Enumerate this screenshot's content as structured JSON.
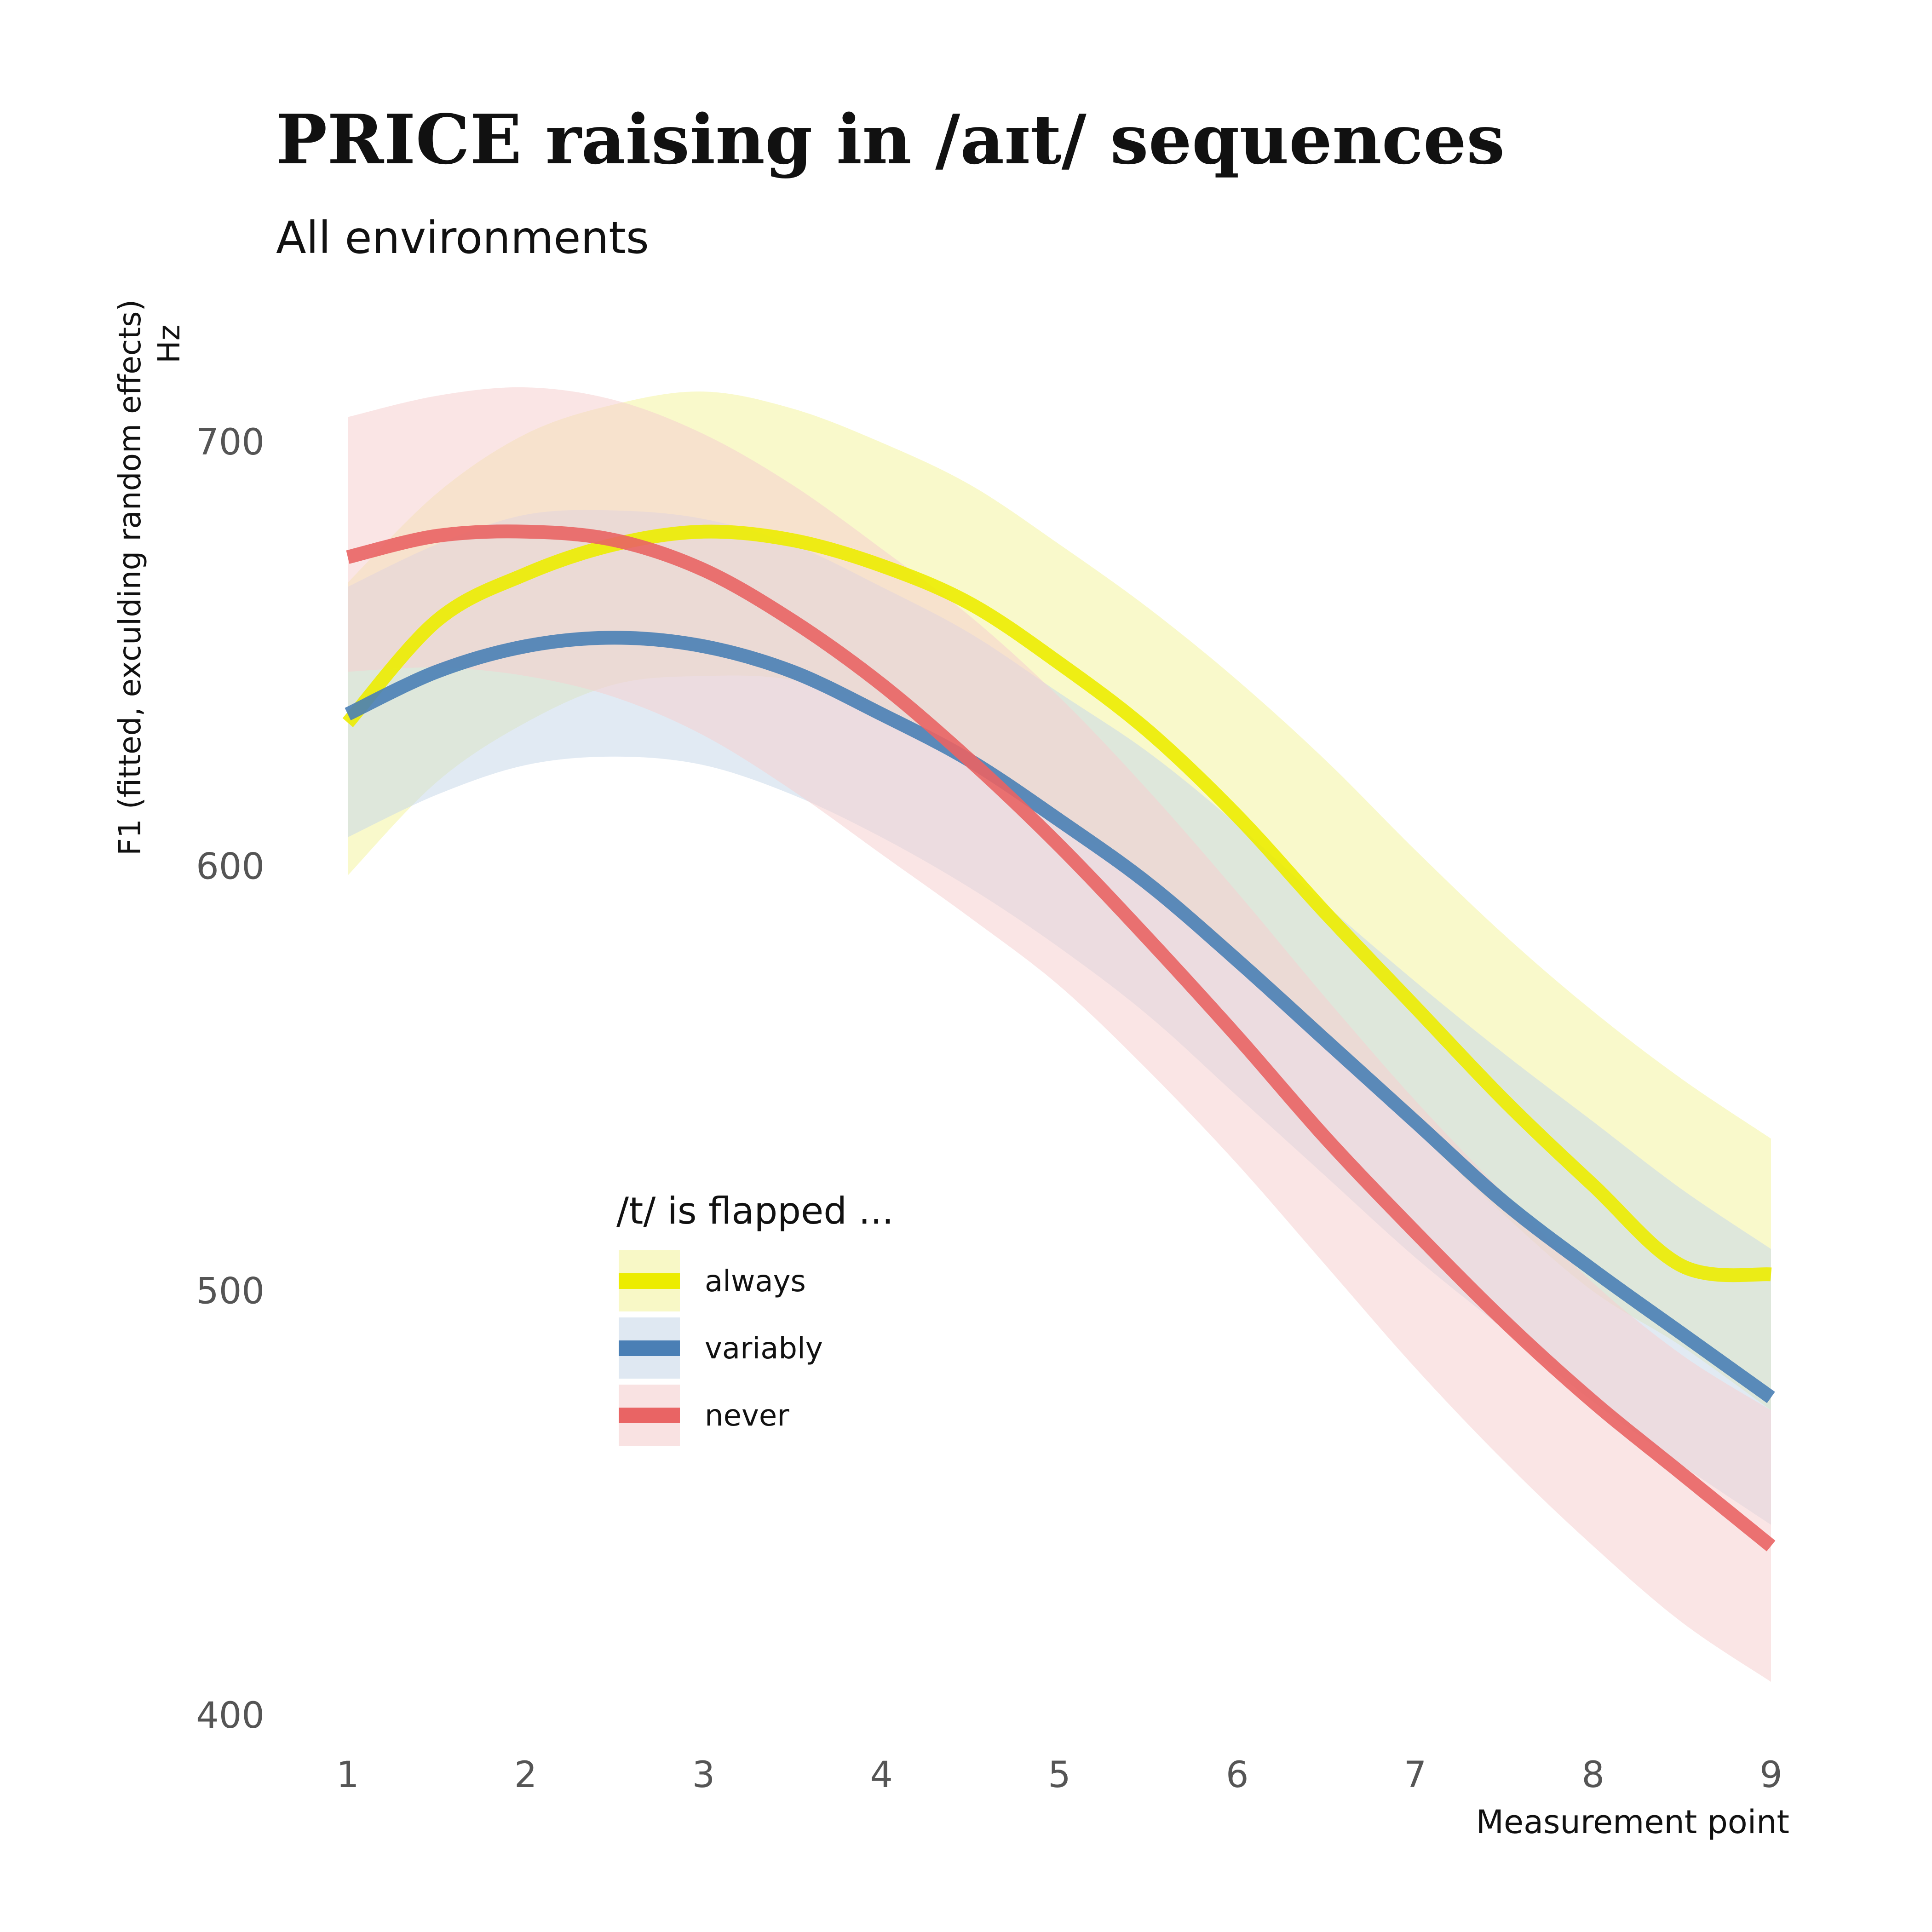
{
  "chart_data": {
    "type": "line",
    "title": "PRICE raising in /aɪt/ sequences",
    "subtitle": "All environments",
    "xlabel": "Measurement point",
    "ylabel": "F1 (fitted, exculding random effects)",
    "yunit": "Hz",
    "x": [
      1,
      1.5,
      2,
      2.5,
      3,
      3.5,
      4,
      4.5,
      5,
      5.5,
      6,
      6.5,
      7,
      7.5,
      8,
      8.5,
      9
    ],
    "xticks": [
      1,
      2,
      3,
      4,
      5,
      6,
      7,
      8,
      9
    ],
    "yticks": [
      400,
      500,
      600,
      700
    ],
    "xlim": [
      0.9,
      9.1
    ],
    "ylim": [
      400,
      710
    ],
    "grid": false,
    "legend": {
      "title": "/t/ is flapped ...",
      "position": "bottom-left"
    },
    "series": [
      {
        "name": "always",
        "color": "#ecec00",
        "band_color": "#f4f4a0",
        "values": [
          634,
          658,
          669,
          676,
          679,
          677,
          671,
          662,
          648,
          632,
          612,
          589,
          567,
          545,
          525,
          506,
          504
        ],
        "lower": [
          598,
          620,
          634,
          643,
          645,
          644,
          637,
          626,
          611,
          596,
          578,
          558,
          538,
          518,
          500,
          487,
          472
        ],
        "upper": [
          667,
          688,
          702,
          709,
          712,
          708,
          700,
          690,
          676,
          661,
          644,
          625,
          604,
          584,
          566,
          550,
          536
        ]
      },
      {
        "name": "variably",
        "color": "#4a7fb5",
        "band_color": "#c9d9ea",
        "values": [
          636,
          646,
          652,
          654,
          652,
          646,
          636,
          625,
          611,
          596,
          578,
          559,
          540,
          521,
          505,
          490,
          475
        ],
        "lower": [
          607,
          617,
          624,
          626,
          624,
          617,
          607,
          595,
          581,
          565,
          546,
          527,
          508,
          491,
          474,
          459,
          445
        ],
        "upper": [
          666,
          676,
          683,
          684,
          682,
          676,
          666,
          655,
          641,
          627,
          610,
          591,
          573,
          556,
          540,
          524,
          510
        ]
      },
      {
        "name": "never",
        "color": "#e96464",
        "band_color": "#f5cfcf",
        "values": [
          673,
          678,
          679,
          677,
          670,
          658,
          643,
          625,
          605,
          583,
          560,
          536,
          514,
          493,
          474,
          457,
          440
        ],
        "lower": [
          646,
          647,
          645,
          640,
          631,
          618,
          603,
          588,
          572,
          552,
          530,
          506,
          482,
          460,
          440,
          422,
          408
        ],
        "upper": [
          706,
          711,
          713,
          710,
          702,
          690,
          675,
          659,
          640,
          618,
          594,
          569,
          545,
          523,
          502,
          485,
          472
        ]
      }
    ]
  }
}
